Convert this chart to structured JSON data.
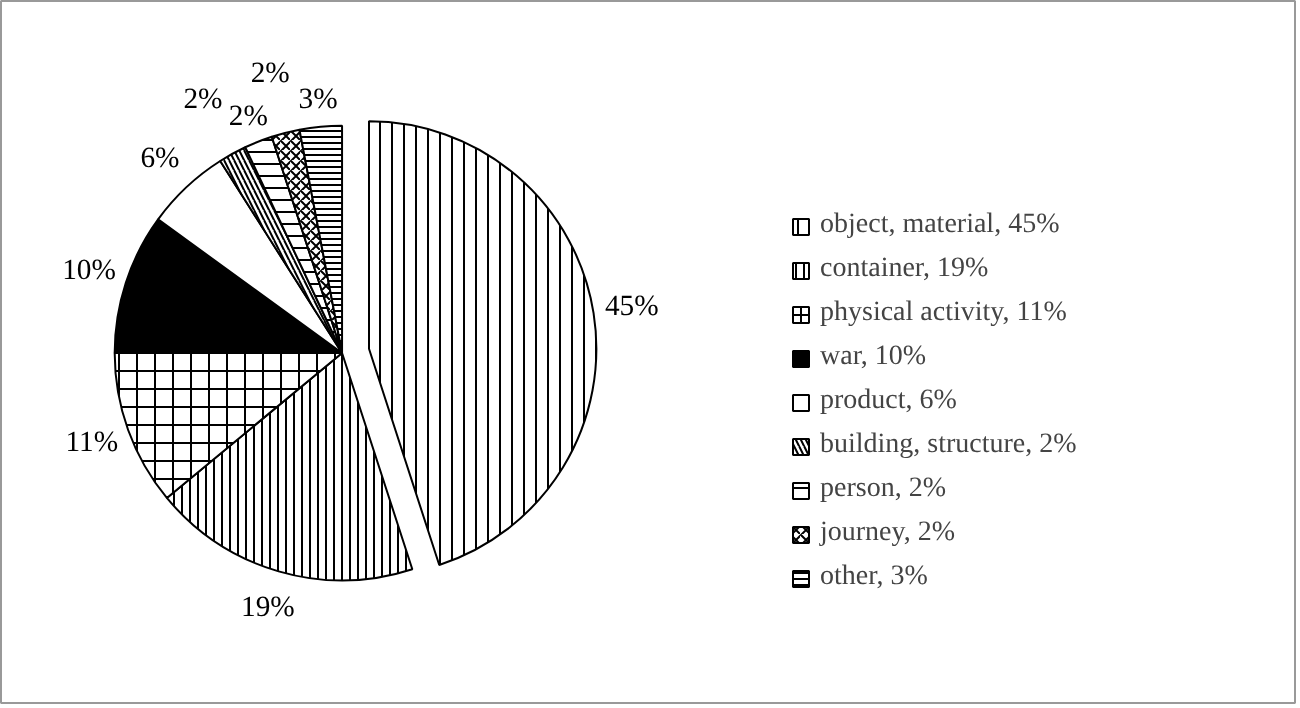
{
  "chart_data": {
    "type": "pie",
    "categories": [
      "object, material, 45%",
      "container, 19%",
      "physical activity, 11%",
      "war, 10%",
      "product, 6%",
      "building, structure, 2%",
      "person, 2%",
      "journey, 2%",
      "other, 3%"
    ],
    "values": [
      45,
      19,
      11,
      10,
      6,
      2,
      2,
      2,
      3
    ],
    "value_labels": [
      "45%",
      "19%",
      "11%",
      "10%",
      "6%",
      "2%",
      "2%",
      "2%",
      "3%"
    ],
    "colors": [
      "#ffffff",
      "#ffffff",
      "#ffffff",
      "#000000",
      "#ffffff",
      "#ffffff",
      "#ffffff",
      "#ffffff",
      "#ffffff"
    ],
    "legend": "right"
  }
}
